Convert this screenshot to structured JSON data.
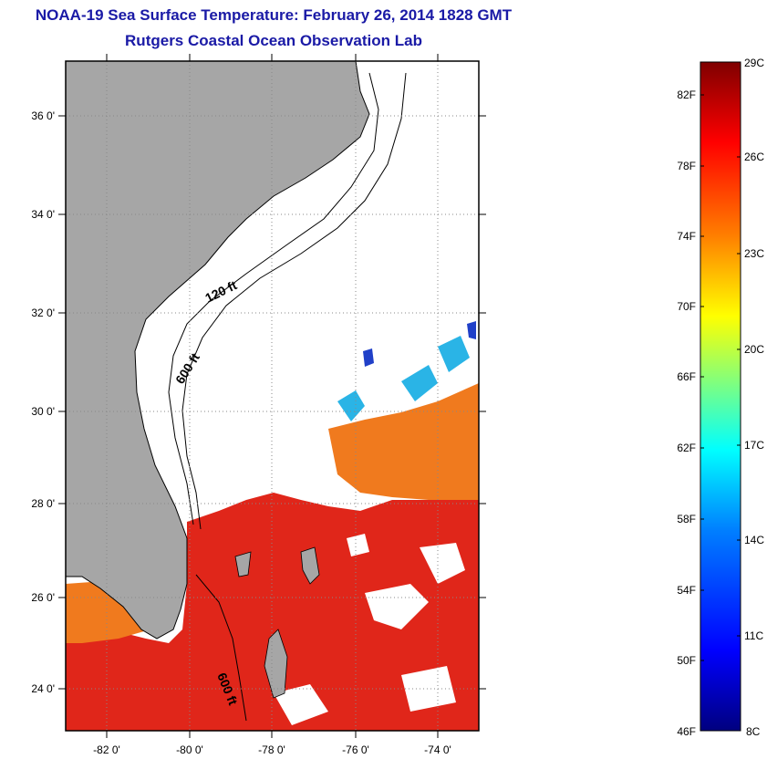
{
  "header": {
    "title": "NOAA-19 Sea Surface Temperature:  February 26, 2014 1828 GMT",
    "subtitle": "Rutgers Coastal Ocean Observation Lab"
  },
  "map": {
    "lon_labels": [
      "-82 0'",
      "-80 0'",
      "-78 0'",
      "-76 0'",
      "-74 0'"
    ],
    "lat_labels": [
      "36 0'",
      "34 0'",
      "32 0'",
      "30 0'",
      "28 0'",
      "26 0'",
      "24 0'"
    ],
    "contours": {
      "shallow": "120 ft",
      "deep": "600 ft",
      "deep_south": "600 ft"
    },
    "colors": {
      "land": "#a6a6a6",
      "cloud": "#ffffff",
      "warm": "#e0261a",
      "mid": "#f07a1e",
      "cool": "#2ab4e6"
    }
  },
  "colorbar": {
    "f_labels": [
      "82F",
      "78F",
      "74F",
      "70F",
      "66F",
      "62F",
      "58F",
      "54F",
      "50F",
      "46F"
    ],
    "c_labels": [
      "29C",
      "26C",
      "23C",
      "20C",
      "17C",
      "14C",
      "11C",
      "8C"
    ],
    "colors": [
      "#00007f",
      "#0000ff",
      "#007fff",
      "#00ffff",
      "#7fff7f",
      "#ffff00",
      "#ff7f00",
      "#ff0000",
      "#7f0000"
    ]
  }
}
